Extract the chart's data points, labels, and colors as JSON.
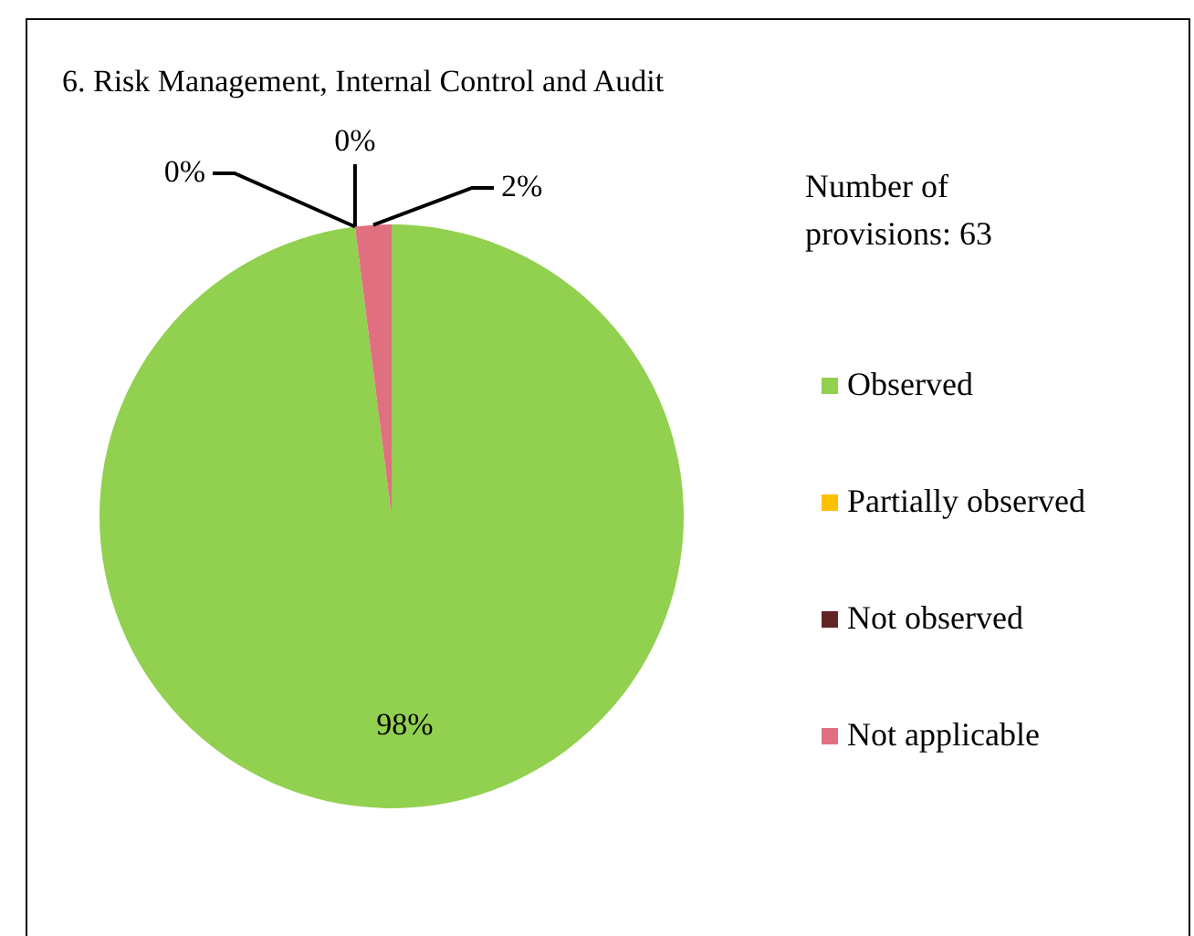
{
  "chart_data": {
    "type": "pie",
    "title": "6. Risk Management, Internal Control and Audit",
    "categories": [
      "Observed",
      "Partially observed",
      "Not observed",
      "Not applicable"
    ],
    "values": [
      98,
      0,
      0,
      2
    ],
    "colors": [
      "#92d050",
      "#ffc000",
      "#632523",
      "#e07080"
    ],
    "value_labels": [
      "98%",
      "0%",
      "0%",
      "2%"
    ],
    "annotations": [
      "Number of provisions: 63"
    ],
    "legend": "right"
  }
}
